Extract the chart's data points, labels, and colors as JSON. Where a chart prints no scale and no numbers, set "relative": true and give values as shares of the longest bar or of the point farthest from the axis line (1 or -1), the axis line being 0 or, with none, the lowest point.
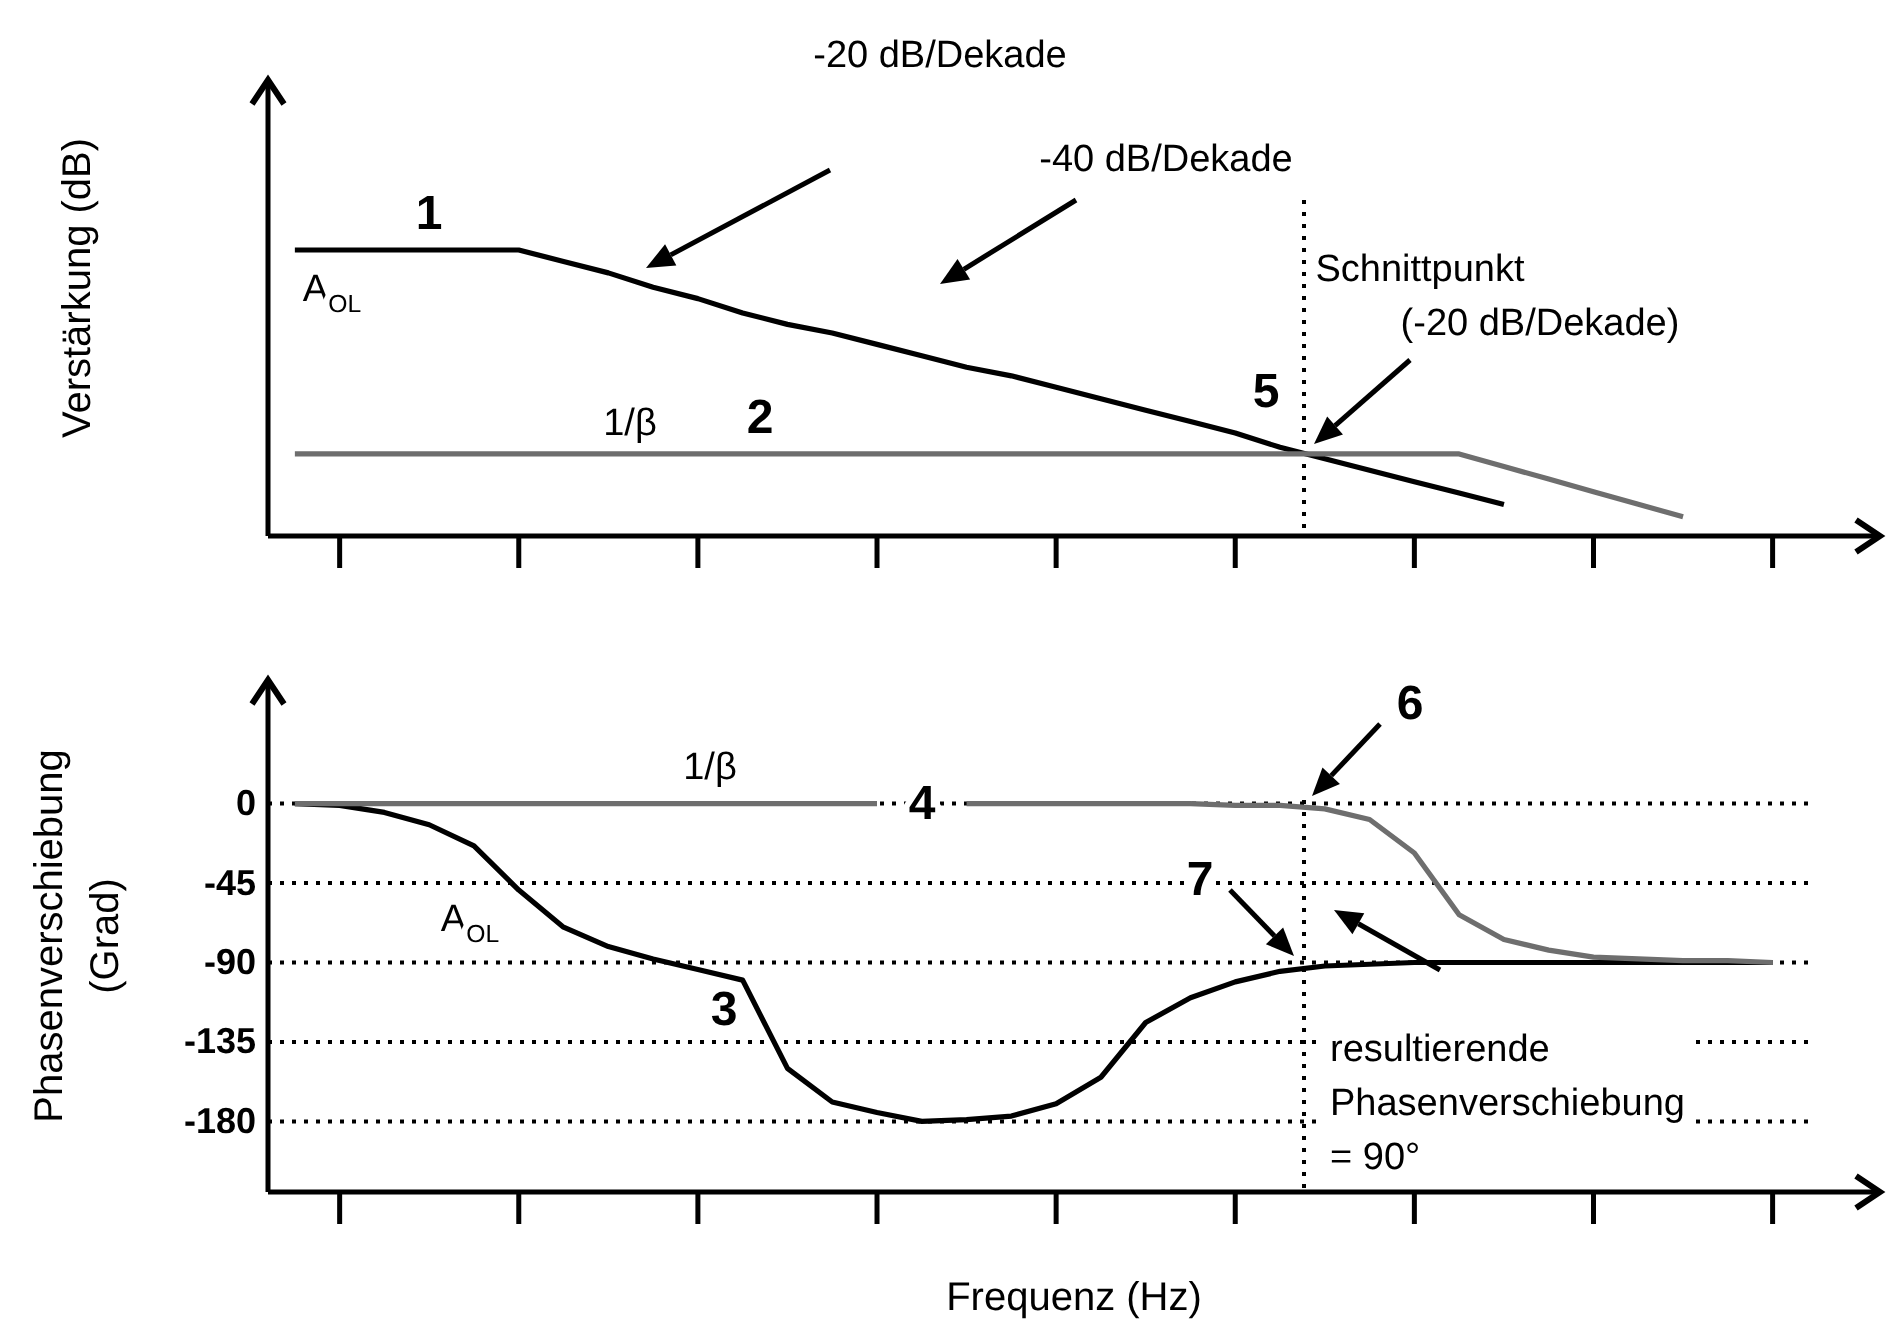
{
  "chart_data": [
    {
      "type": "line",
      "ylabel": "Verstärkung (dB)",
      "relative": true,
      "tick_labels": false,
      "categories": [
        null,
        null,
        null,
        null,
        null,
        null,
        null,
        null,
        null,
        null,
        null,
        null,
        null,
        null,
        null,
        null,
        null,
        null,
        null,
        null,
        null,
        null,
        null,
        null,
        null,
        null,
        null,
        null,
        null,
        null,
        null,
        null,
        null,
        null,
        null
      ],
      "series": [
        {
          "color": "#000000",
          "values": [
            1,
            1,
            1,
            1,
            1,
            1,
            0.96,
            0.92,
            0.87,
            0.83,
            0.78,
            0.74,
            0.71,
            0.67,
            0.63,
            0.59,
            0.56,
            0.52,
            0.48,
            0.44,
            0.4,
            0.36,
            0.31,
            0.27,
            0.23,
            0.19,
            0.15,
            0.11,
            null,
            null,
            null,
            null,
            null,
            null,
            null
          ]
        },
        {
          "color": "#6e6e6e",
          "values": [
            0.287,
            0.287,
            0.287,
            0.287,
            0.287,
            0.287,
            0.287,
            0.287,
            0.287,
            0.287,
            0.287,
            0.287,
            0.287,
            0.287,
            0.287,
            0.287,
            0.287,
            0.287,
            0.287,
            0.287,
            0.287,
            0.287,
            0.287,
            0.287,
            0.287,
            0.287,
            0.287,
            0.243,
            0.199,
            0.155,
            0.111,
            0.067,
            null,
            null,
            null
          ]
        }
      ],
      "ref_lines": [
        {
          "axis": "x",
          "line_style": "dotted",
          "color": "#000000"
        }
      ],
      "annotations": [
        "1",
        "A$_{OL}$",
        "1/β",
        "2",
        "5",
        "-20 dB/Dekade",
        "-40 dB/Dekade",
        "Schnittpunkt\n(-20 dB/Dekade)"
      ]
    },
    {
      "type": "line",
      "ylabel": "Phasenverschiebung\n(Grad)",
      "xlabel": "Frequenz (Hz)",
      "categories": [
        null,
        null,
        null,
        null,
        null,
        null,
        null,
        null,
        null,
        null,
        null,
        null,
        null,
        null,
        null,
        null,
        null,
        null,
        null,
        null,
        null,
        null,
        null,
        null,
        null,
        null,
        null,
        null,
        null,
        null,
        null,
        null,
        null,
        null,
        null
      ],
      "ylim": [
        -220,
        70
      ],
      "yticks": [
        0,
        -45,
        -90,
        -135,
        -180
      ],
      "grid": "y",
      "tick_labels": "y",
      "series": [
        {
          "color": "#000000",
          "values": [
            0,
            -1,
            -5,
            -12,
            -24,
            -49,
            -70,
            -81,
            -88,
            -94,
            -100,
            -150,
            -169,
            -175,
            -180,
            -179,
            -177,
            -170,
            -155,
            -124,
            -110,
            -101,
            -95,
            -92,
            -91,
            -90,
            -90,
            -90,
            -90,
            -90,
            -90,
            -90,
            -90,
            -90,
            null
          ]
        },
        {
          "color": "#6e6e6e",
          "values": [
            0,
            0,
            0,
            0,
            0,
            0,
            0,
            0,
            0,
            0,
            0,
            0,
            0,
            0,
            null,
            0,
            0,
            0,
            0,
            0,
            0,
            -1,
            -1,
            -3,
            -9,
            -28,
            -63,
            -77,
            -83,
            -87,
            -88,
            -89,
            -89,
            -90,
            null
          ]
        }
      ],
      "ref_lines": [
        {
          "axis": "x",
          "line_style": "dotted",
          "color": "#000000"
        }
      ],
      "annotations": [
        "1/β",
        "4",
        "A$_{OL}$",
        "3",
        "6",
        "7",
        "resultierende\nPhasenverschiebung\n= 90°"
      ]
    }
  ]
}
